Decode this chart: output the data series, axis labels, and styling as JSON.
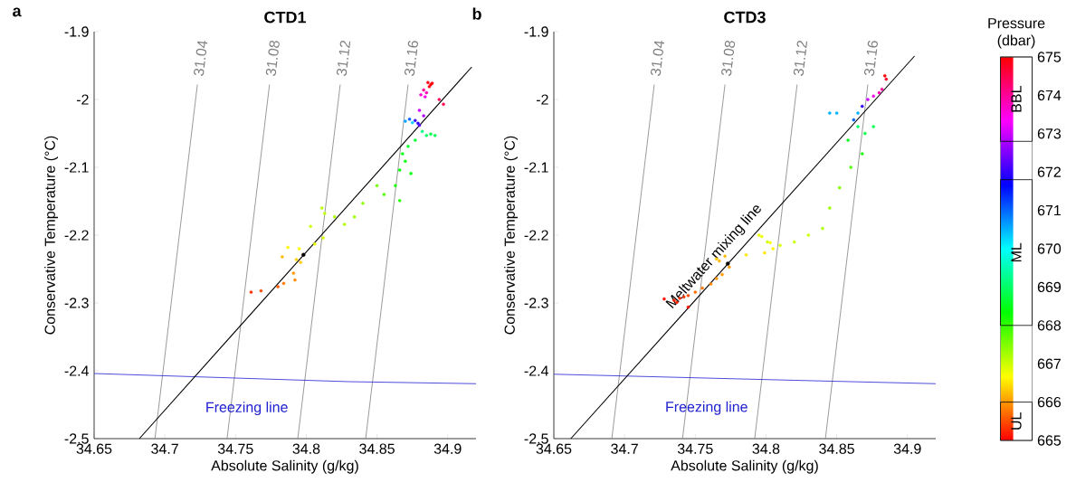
{
  "chart_data": [
    {
      "type": "scatter",
      "title": "CTD1",
      "xlabel": "Absolute Salinity (g/kg)",
      "ylabel": "Conservative Temperature (°C)",
      "xlim": [
        34.65,
        34.92
      ],
      "ylim": [
        -2.5,
        -1.9
      ],
      "xticks": [
        34.65,
        34.7,
        34.75,
        34.8,
        34.85,
        34.9
      ],
      "yticks": [
        -2.5,
        -2.4,
        -2.3,
        -2.2,
        -2.1,
        -2,
        -1.9
      ],
      "annotations": [
        "a"
      ],
      "series": [
        {
          "type": "line",
          "name": "31.04",
          "color": "#808080",
          "x": [
            34.693,
            34.723
          ],
          "values": [
            -2.5,
            -1.978
          ]
        },
        {
          "type": "line",
          "name": "31.08",
          "color": "#808080",
          "x": [
            34.744,
            34.774
          ],
          "values": [
            -2.5,
            -1.978
          ]
        },
        {
          "type": "line",
          "name": "31.12",
          "color": "#808080",
          "x": [
            34.794,
            34.824
          ],
          "values": [
            -2.5,
            -1.978
          ]
        },
        {
          "type": "line",
          "name": "31.16",
          "color": "#808080",
          "x": [
            34.842,
            34.872
          ],
          "values": [
            -2.5,
            -1.978
          ]
        },
        {
          "type": "line",
          "name": "Freezing line",
          "color": "#2020d0",
          "x": [
            34.65,
            34.83,
            34.92
          ],
          "values": [
            -2.404,
            -2.416,
            -2.419
          ]
        },
        {
          "type": "line",
          "color": "#000000",
          "x": [
            34.682,
            34.917
          ],
          "values": [
            -2.5,
            -1.952
          ]
        },
        {
          "marker": "circle",
          "colors": [
            "#ff000f",
            "#ff0000",
            "#ff001f",
            "#ff000f",
            "#ff0099",
            "#ff00b8",
            "#ff00d6",
            "#ff00e6",
            "#ff005c",
            "#ff004d",
            "#cc00ff",
            "#ad00ff",
            "#3300ff",
            "#2400ff",
            "#5200ff",
            "#0066ff",
            "#00a3ff",
            "#00d1ff",
            "#00ff85",
            "#00ff66",
            "#00ff47",
            "#00ff57",
            "#00ff38",
            "#00ff29",
            "#00ff1a",
            "#00ff0a",
            "#05ff00",
            "#00ff0a",
            "#14ff00",
            "#24ff00",
            "#52ff00",
            "#70ff00",
            "#8fff00",
            "#9eff00",
            "#adff00",
            "#bdff00",
            "#bdff00",
            "#ccff00",
            "#adff00",
            "#dbff00",
            "#ebff00",
            "#faff00",
            "#fff500",
            "#ffb800",
            "#ffd600",
            "#ffc700",
            "#ff9900",
            "#ff8a00",
            "#ff7a00",
            "#ff5c00",
            "#ff4d00",
            "#ff2e00"
          ],
          "x": [
            34.886,
            34.888,
            34.887,
            34.889,
            34.883,
            34.885,
            34.881,
            34.884,
            34.894,
            34.897,
            34.88,
            34.883,
            34.877,
            34.879,
            34.88,
            34.873,
            34.87,
            34.875,
            34.882,
            34.885,
            34.888,
            34.891,
            34.877,
            34.872,
            34.868,
            34.87,
            34.866,
            34.874,
            34.863,
            34.866,
            34.855,
            34.85,
            34.84,
            34.834,
            34.82,
            34.811,
            34.813,
            34.803,
            34.827,
            34.812,
            34.806,
            34.795,
            34.787,
            34.783,
            34.793,
            34.796,
            34.791,
            34.792,
            34.784,
            34.78,
            34.768,
            34.761
          ],
          "values": [
            -1.975,
            -1.978,
            -1.981,
            -1.976,
            -1.986,
            -1.99,
            -1.993,
            -1.996,
            -2.0,
            -2.007,
            -2.016,
            -2.024,
            -2.031,
            -2.035,
            -2.038,
            -2.029,
            -2.032,
            -2.034,
            -2.047,
            -2.053,
            -2.051,
            -2.053,
            -2.06,
            -2.069,
            -2.08,
            -2.091,
            -2.104,
            -2.109,
            -2.127,
            -2.149,
            -2.14,
            -2.127,
            -2.153,
            -2.173,
            -2.173,
            -2.16,
            -2.168,
            -2.187,
            -2.184,
            -2.204,
            -2.213,
            -2.22,
            -2.218,
            -2.232,
            -2.236,
            -2.24,
            -2.256,
            -2.266,
            -2.271,
            -2.276,
            -2.282,
            -2.284
          ]
        },
        {
          "marker": "circle",
          "color": "#000000",
          "x": [
            34.798
          ],
          "values": [
            -2.229
          ]
        }
      ]
    },
    {
      "type": "scatter",
      "title": "CTD3",
      "xlabel": "Absolute Salinity (g/kg)",
      "ylabel": "Conservative Temperature (°C)",
      "xlim": [
        34.65,
        34.92
      ],
      "ylim": [
        -2.5,
        -1.9
      ],
      "xticks": [
        34.65,
        34.7,
        34.75,
        34.8,
        34.85,
        34.9
      ],
      "yticks": [
        -2.5,
        -2.4,
        -2.3,
        -2.2,
        -2.1,
        -2,
        -1.9
      ],
      "clim": [
        665,
        675
      ],
      "cticks": [
        665,
        666,
        667,
        668,
        669,
        670,
        671,
        672,
        673,
        674,
        675
      ],
      "clabel": "Pressure (dbar)",
      "annotations": [
        "b",
        "UL",
        "ML",
        "BBL"
      ],
      "series": [
        {
          "type": "line",
          "name": "31.04",
          "color": "#808080",
          "x": [
            34.691,
            34.721
          ],
          "values": [
            -2.5,
            -1.978
          ]
        },
        {
          "type": "line",
          "name": "31.08",
          "color": "#808080",
          "x": [
            34.741,
            34.771
          ],
          "values": [
            -2.5,
            -1.978
          ]
        },
        {
          "type": "line",
          "name": "31.12",
          "color": "#808080",
          "x": [
            34.792,
            34.822
          ],
          "values": [
            -2.5,
            -1.978
          ]
        },
        {
          "type": "line",
          "name": "31.16",
          "color": "#808080",
          "x": [
            34.842,
            34.872
          ],
          "values": [
            -2.5,
            -1.978
          ]
        },
        {
          "type": "line",
          "name": "Freezing line",
          "color": "#2020d0",
          "x": [
            34.65,
            34.82,
            34.92
          ],
          "values": [
            -2.405,
            -2.414,
            -2.419
          ]
        },
        {
          "type": "line",
          "name": "Meltwater mixing line",
          "color": "#000000",
          "x": [
            34.662,
            34.905
          ],
          "values": [
            -2.5,
            -1.936
          ]
        },
        {
          "marker": "circle",
          "x": [
            34.884,
            34.885,
            34.882,
            34.88,
            34.876,
            34.872,
            34.868,
            34.865,
            34.85,
            34.845,
            34.862,
            34.865,
            34.858,
            34.87,
            34.876,
            34.868,
            34.86,
            34.852,
            34.845,
            34.84,
            34.83,
            34.82,
            34.81,
            34.801,
            34.795,
            34.797,
            34.803,
            34.805,
            34.799,
            34.786,
            34.771,
            34.767,
            34.765,
            34.774,
            34.769,
            34.765,
            34.761,
            34.755,
            34.75,
            34.745,
            34.745,
            34.742,
            34.739,
            34.737,
            34.735,
            34.728
          ],
          "values": [
            -1.965,
            -1.97,
            -1.985,
            -1.99,
            -1.995,
            -2.0,
            -2.01,
            -2.02,
            -2.02,
            -2.02,
            -2.03,
            -2.04,
            -2.06,
            -2.05,
            -2.04,
            -2.08,
            -2.1,
            -2.13,
            -2.16,
            -2.19,
            -2.2,
            -2.21,
            -2.215,
            -2.21,
            -2.2,
            -2.202,
            -2.211,
            -2.22,
            -2.226,
            -2.229,
            -2.231,
            -2.238,
            -2.235,
            -2.247,
            -2.258,
            -2.264,
            -2.272,
            -2.278,
            -2.284,
            -2.289,
            -2.306,
            -2.291,
            -2.293,
            -2.299,
            -2.296,
            -2.294
          ],
          "colors": [
            "#ff0000",
            "#ff001f",
            "#ff0099",
            "#ff00b8",
            "#ff00e6",
            "#cc00ff",
            "#3300ff",
            "#00b3ff",
            "#00b3ff",
            "#00b3ff",
            "#0066ff",
            "#00ff66",
            "#00ff1a",
            "#00ff47",
            "#00ff57",
            "#14ff00",
            "#52ff00",
            "#80ff00",
            "#9eff00",
            "#adff00",
            "#ccff00",
            "#ccff00",
            "#dbff00",
            "#ccff00",
            "#ebff00",
            "#ebff00",
            "#faff00",
            "#fff500",
            "#ffe600",
            "#ffe600",
            "#ffb800",
            "#ffb800",
            "#ffc700",
            "#ff9900",
            "#ff9900",
            "#ff9900",
            "#ff8a00",
            "#ff7a00",
            "#ff6b00",
            "#ff4d00",
            "#ff0f00",
            "#ff3d00",
            "#ff2e00",
            "#ff1f00",
            "#ff1f00",
            "#ff0f00"
          ]
        },
        {
          "marker": "circle",
          "color": "#000000",
          "x": [
            34.773
          ],
          "values": [
            -2.242
          ]
        }
      ]
    }
  ]
}
